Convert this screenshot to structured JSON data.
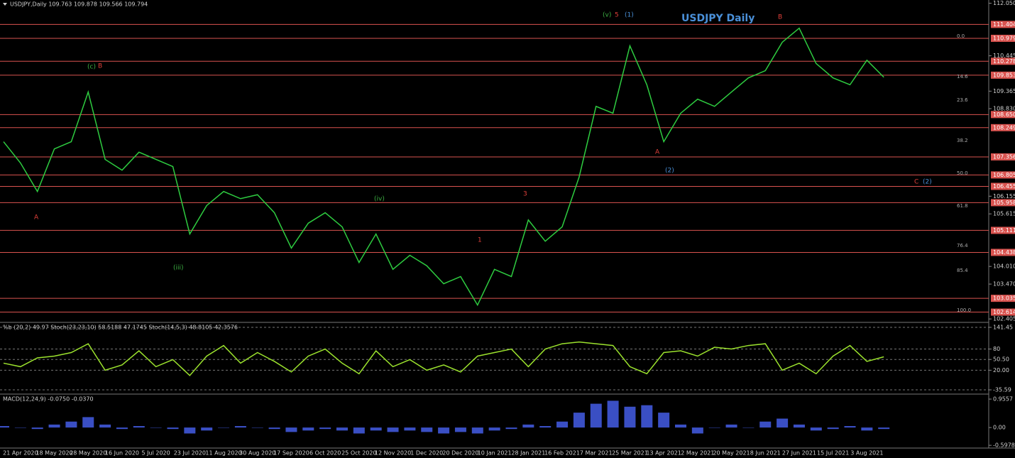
{
  "chart_data": [
    {
      "type": "line",
      "title": "USDJPY,Daily  109.763 109.878 109.566 109.794",
      "watermark": "USDJPY Daily",
      "categories": [
        null,
        "21 Apr 2020",
        null,
        "18 May 2020",
        null,
        "28 May 2020",
        null,
        "16 Jun 2020",
        null,
        "5 Jul 2020",
        null,
        "23 Jul 2020",
        null,
        "11 Aug 2020",
        null,
        "30 Aug 2020",
        null,
        "17 Sep 2020",
        null,
        "6 Oct 2020",
        null,
        "25 Oct 2020",
        null,
        "12 Nov 2020",
        null,
        "1 Dec 2020",
        null,
        "20 Dec 2020",
        null,
        "10 Jan 2021",
        null,
        "28 Jan 2021",
        null,
        "16 Feb 2021",
        null,
        "7 Mar 2021",
        null,
        "25 Mar 2021",
        null,
        "13 Apr 2021",
        null,
        "2 May 2021",
        null,
        "20 May 2021",
        null,
        "8 Jun 2021",
        null,
        "27 Jun 2021",
        null,
        "15 Jul 2021",
        null,
        "3 Aug 2021",
        null
      ],
      "series": [
        {
          "color": "#2ecc40",
          "values": [
            107.82,
            107.17,
            106.3,
            107.6,
            107.82,
            109.34,
            107.28,
            106.95,
            107.5,
            107.28,
            107.06,
            105.0,
            105.87,
            106.3,
            106.08,
            106.2,
            105.65,
            104.57,
            105.33,
            105.65,
            105.22,
            104.13,
            105.0,
            103.92,
            104.35,
            104.03,
            103.48,
            103.7,
            102.83,
            103.92,
            103.7,
            105.43,
            104.78,
            105.22,
            106.74,
            108.9,
            108.69,
            110.75,
            109.56,
            107.82,
            108.69,
            109.12,
            108.9,
            109.34,
            109.77,
            109.99,
            110.86,
            111.29,
            110.21,
            109.77,
            109.56,
            110.31,
            109.79
          ]
        }
      ],
      "ylim": [
        102.3,
        112.15
      ],
      "yticks": [
        {
          "value": 112.05,
          "label": "112.050"
        },
        110.445,
        109.365,
        {
          "value": 108.83,
          "label": "108.830"
        },
        106.155,
        105.615,
        {
          "value": 104.01,
          "label": "104.010"
        },
        {
          "value": 103.47,
          "label": "103.470"
        },
        102.405
      ],
      "levels": [
        111.404,
        110.979,
        110.278,
        109.853,
        {
          "value": 108.65,
          "label": "108.650"
        },
        108.249,
        107.356,
        106.805,
        106.455,
        105.958,
        105.111,
        104.438,
        103.035,
        102.614
      ],
      "level_color": "#d9534f",
      "fib_labels": [
        "0.0",
        "14.6",
        "23.6",
        "38.2",
        "50.0",
        "61.8",
        "76.4",
        "85.4",
        "100.0"
      ],
      "annotations": [
        {
          "text": "(v)",
          "color": "#3cb043"
        },
        {
          "text": "5",
          "color": "#e0403a"
        },
        {
          "text": "(1)",
          "color": "#4a90d9"
        },
        {
          "text": "B",
          "color": "#e0403a"
        },
        {
          "text": "A",
          "color": "#e0403a"
        },
        {
          "text": "(2)",
          "color": "#4a90d9"
        },
        {
          "text": "C",
          "color": "#e0403a"
        },
        {
          "text": "(2)",
          "color": "#4a90d9"
        },
        {
          "text": "3",
          "color": "#e0403a"
        },
        {
          "text": "1",
          "color": "#e0403a"
        },
        {
          "text": "(c)",
          "color": "#3cb043"
        },
        {
          "text": "B",
          "color": "#e0403a"
        },
        {
          "text": "A",
          "color": "#e0403a"
        },
        {
          "text": "(iii)",
          "color": "#3cb043"
        },
        {
          "text": "(iv)",
          "color": "#3cb043"
        }
      ]
    },
    {
      "type": "line",
      "title": "%b (20,2) 49.97  Stoch(23,23,10) 58.5188 47.1745  Stoch(14,5,3) 48.8105 42.3576",
      "series": [
        {
          "color": "#9be22d",
          "values": [
            40,
            30,
            55,
            60,
            70,
            95,
            20,
            35,
            75,
            30,
            50,
            5,
            60,
            90,
            40,
            70,
            45,
            15,
            60,
            80,
            40,
            10,
            75,
            30,
            50,
            20,
            35,
            15,
            60,
            70,
            80,
            30,
            80,
            95,
            100,
            95,
            90,
            30,
            10,
            70,
            75,
            60,
            85,
            80,
            90,
            95,
            20,
            40,
            10,
            60,
            90,
            45,
            58
          ]
        }
      ],
      "ylim": [
        -43.6,
        153.5
      ],
      "yticks": [
        141.45,
        80,
        {
          "value": 50.5,
          "label": "50.50"
        },
        {
          "value": 20,
          "label": "20.00"
        },
        -35.59
      ],
      "grid": true
    },
    {
      "type": "bar",
      "title": "MACD(12,24,9) -0.0750 -0.0370",
      "series": [
        {
          "color": "#3a4fc4",
          "values": [
            0.05,
            0.0,
            -0.05,
            0.1,
            0.2,
            0.35,
            0.1,
            -0.05,
            0.05,
            0.0,
            -0.05,
            -0.2,
            -0.1,
            0.0,
            0.05,
            0.0,
            -0.05,
            -0.15,
            -0.1,
            -0.05,
            -0.1,
            -0.2,
            -0.1,
            -0.15,
            -0.1,
            -0.15,
            -0.2,
            -0.15,
            -0.2,
            -0.1,
            -0.05,
            0.1,
            0.05,
            0.2,
            0.5,
            0.8,
            0.9,
            0.7,
            0.75,
            0.5,
            0.1,
            -0.2,
            0.0,
            0.1,
            0.0,
            0.2,
            0.3,
            0.1,
            -0.1,
            -0.05,
            0.05,
            -0.1,
            -0.05
          ]
        }
      ],
      "ylim": [
        -0.69,
        1.1
      ],
      "yticks": [
        0.9557,
        {
          "value": 0,
          "label": "0.00"
        },
        -0.5978
      ]
    }
  ]
}
